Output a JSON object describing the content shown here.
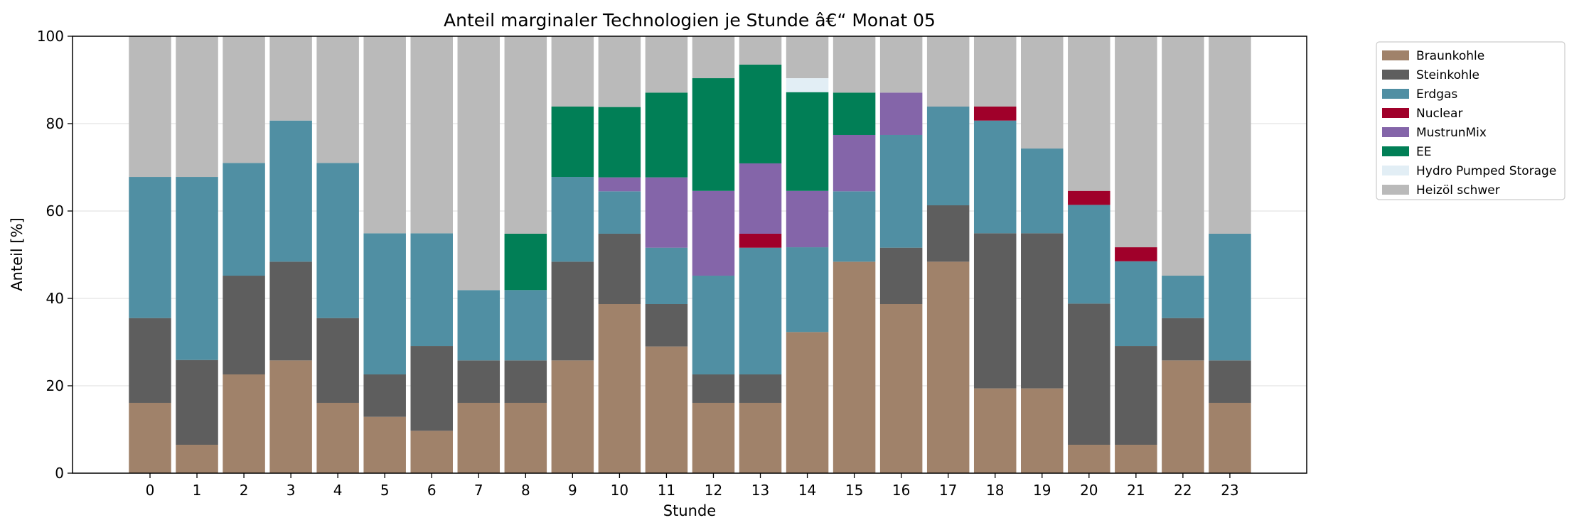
{
  "chart_data": {
    "type": "bar",
    "stacked": true,
    "title": "Anteil marginaler Technologien je Stunde â€“ Monat 05",
    "xlabel": "Stunde",
    "ylabel": "Anteil [%]",
    "ylim": [
      0,
      100
    ],
    "yticks": [
      0,
      20,
      40,
      60,
      80,
      100
    ],
    "grid": "y",
    "legend_position": "outside-right-top",
    "categories": [
      "0",
      "1",
      "2",
      "3",
      "4",
      "5",
      "6",
      "7",
      "8",
      "9",
      "10",
      "11",
      "12",
      "13",
      "14",
      "15",
      "16",
      "17",
      "18",
      "19",
      "20",
      "21",
      "22",
      "23"
    ],
    "series": [
      {
        "name": "Braunkohle",
        "color": "#a0826a",
        "values": [
          16.1,
          6.5,
          22.6,
          25.8,
          16.1,
          12.9,
          9.7,
          16.1,
          16.1,
          25.8,
          38.7,
          29.0,
          16.1,
          16.1,
          32.3,
          48.4,
          38.7,
          48.4,
          19.4,
          19.4,
          6.5,
          6.5,
          25.8,
          16.1
        ]
      },
      {
        "name": "Steinkohle",
        "color": "#5e5e5e",
        "values": [
          19.4,
          19.4,
          22.6,
          22.6,
          19.4,
          9.7,
          19.4,
          9.7,
          9.7,
          22.6,
          16.1,
          9.7,
          6.5,
          6.5,
          0,
          0,
          12.9,
          12.9,
          35.5,
          35.5,
          32.3,
          22.6,
          9.7,
          9.7
        ]
      },
      {
        "name": "Erdgas",
        "color": "#508fa3",
        "values": [
          32.3,
          41.9,
          25.8,
          32.3,
          35.5,
          32.3,
          25.8,
          16.1,
          16.1,
          19.4,
          9.7,
          12.9,
          22.6,
          29.0,
          19.4,
          16.1,
          25.8,
          22.6,
          25.8,
          19.4,
          22.6,
          19.4,
          9.7,
          29.0
        ]
      },
      {
        "name": "Nuclear",
        "color": "#a0002a",
        "values": [
          0,
          0,
          0,
          0,
          0,
          0,
          0,
          0,
          0,
          0,
          0,
          0,
          0,
          3.2,
          0,
          0,
          0,
          0,
          3.2,
          0,
          3.2,
          3.2,
          0,
          0
        ]
      },
      {
        "name": "MustrunMix",
        "color": "#8465a9",
        "values": [
          0,
          0,
          0,
          0,
          0,
          0,
          0,
          0,
          0,
          0,
          3.2,
          16.1,
          19.4,
          16.1,
          12.9,
          12.9,
          9.7,
          0,
          0,
          0,
          0,
          0,
          0,
          0
        ]
      },
      {
        "name": "EE",
        "color": "#017f56",
        "values": [
          0,
          0,
          0,
          0,
          0,
          0,
          0,
          0,
          12.9,
          16.1,
          16.1,
          19.4,
          25.8,
          22.6,
          22.6,
          9.7,
          0,
          0,
          0,
          0,
          0,
          0,
          0,
          0
        ]
      },
      {
        "name": "Hydro Pumped Storage",
        "color": "#e2eef5",
        "values": [
          0,
          0,
          0,
          0,
          0,
          0,
          0,
          0,
          0,
          0,
          0,
          0,
          0,
          0,
          3.2,
          0,
          0,
          0,
          0,
          0,
          0,
          0,
          0,
          0
        ]
      },
      {
        "name": "Heizöl schwer",
        "color": "#bababa",
        "values": [
          32.3,
          32.3,
          29.0,
          19.4,
          29.0,
          45.2,
          45.2,
          58.1,
          45.2,
          16.1,
          16.1,
          12.9,
          9.7,
          6.5,
          9.7,
          12.9,
          12.9,
          16.1,
          16.1,
          25.8,
          35.5,
          48.4,
          54.8,
          45.2
        ]
      }
    ]
  }
}
